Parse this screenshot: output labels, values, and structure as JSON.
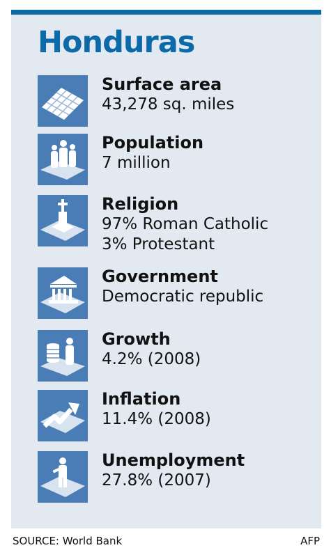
{
  "title": "Honduras",
  "accent_color": "#0d6aa8",
  "icon_color": "#4a7db5",
  "facts": [
    {
      "icon": "grid-map-icon",
      "label": "Surface area",
      "value": "43,278 sq. miles"
    },
    {
      "icon": "people-icon",
      "label": "Population",
      "value": "7 million"
    },
    {
      "icon": "cross-monument-icon",
      "label": "Religion",
      "value": "97% Roman Catholic",
      "value2": "3% Protestant"
    },
    {
      "icon": "government-building-icon",
      "label": "Government",
      "value": "Democratic republic"
    },
    {
      "icon": "coins-person-icon",
      "label": "Growth",
      "value": "4.2% (2008)"
    },
    {
      "icon": "rising-arrow-icon",
      "label": "Inflation",
      "value": "11.4% (2008)"
    },
    {
      "icon": "worker-icon",
      "label": "Unemployment",
      "value": "27.8% (2007)"
    }
  ],
  "source": "SOURCE: World Bank",
  "credit": "AFP"
}
